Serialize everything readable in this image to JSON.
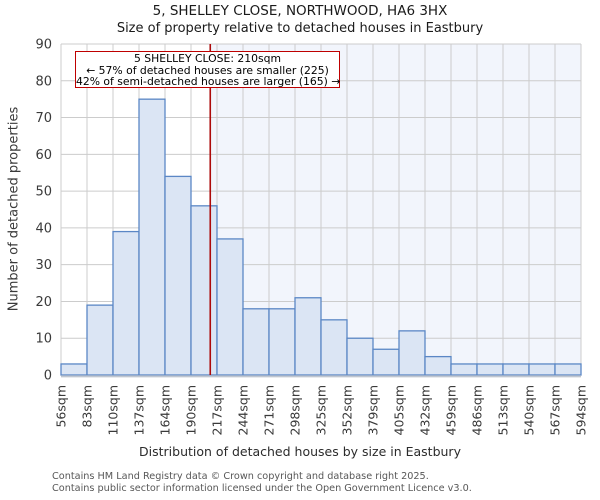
{
  "header": {
    "title": "5, SHELLEY CLOSE, NORTHWOOD, HA6 3HX",
    "subtitle": "Size of property relative to detached houses in Eastbury"
  },
  "annotation": {
    "line1": "5 SHELLEY CLOSE: 210sqm",
    "line2": "← 57% of detached houses are smaller (225)",
    "line3": "42% of semi-detached houses are larger (165) →"
  },
  "chart_data": {
    "type": "bar",
    "title": "5, SHELLEY CLOSE, NORTHWOOD, HA6 3HX",
    "subtitle": "Size of property relative to detached houses in Eastbury",
    "xlabel": "Distribution of detached houses by size in Eastbury",
    "ylabel": "Number of detached properties",
    "bin_edges_sqm": [
      56,
      83,
      110,
      137,
      164,
      190,
      217,
      244,
      271,
      298,
      325,
      352,
      379,
      405,
      432,
      459,
      486,
      513,
      540,
      567,
      594
    ],
    "x_tick_labels": [
      "56sqm",
      "83sqm",
      "110sqm",
      "137sqm",
      "164sqm",
      "190sqm",
      "217sqm",
      "244sqm",
      "271sqm",
      "298sqm",
      "325sqm",
      "352sqm",
      "379sqm",
      "405sqm",
      "432sqm",
      "459sqm",
      "486sqm",
      "513sqm",
      "540sqm",
      "567sqm",
      "594sqm"
    ],
    "values": [
      3,
      19,
      39,
      75,
      54,
      46,
      37,
      18,
      18,
      21,
      15,
      10,
      7,
      12,
      5,
      3,
      3,
      3,
      3,
      3
    ],
    "ylim": [
      0,
      90
    ],
    "y_ticks": [
      0,
      10,
      20,
      30,
      40,
      50,
      60,
      70,
      80,
      90
    ],
    "grid": true,
    "marker_value_sqm": 210,
    "colors": {
      "bar_fill": "#dbe5f4",
      "bar_stroke": "#5b87c5",
      "grid": "#cccccc",
      "axis_line": "#c0c6cf",
      "marker_line": "#ad0a0a",
      "shade_right_of_marker": "#f2f5fc",
      "tick_text": "#3a3a3a"
    }
  },
  "footer": {
    "line1": "Contains HM Land Registry data © Crown copyright and database right 2025.",
    "line2": "Contains public sector information licensed under the Open Government Licence v3.0."
  }
}
